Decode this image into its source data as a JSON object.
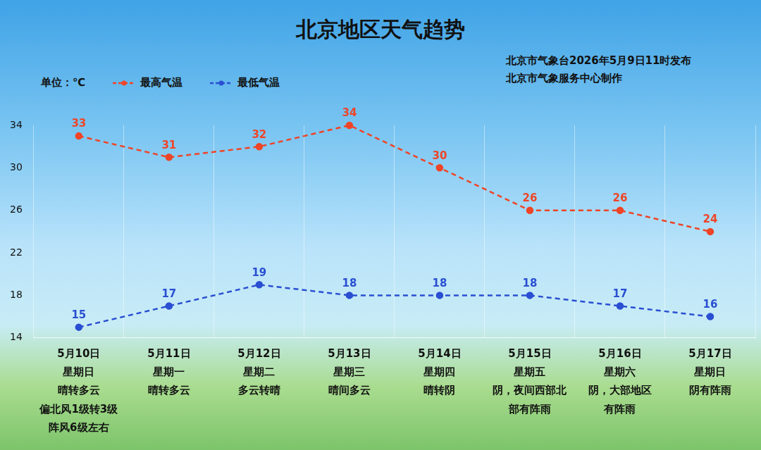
{
  "chart_data": {
    "type": "line",
    "title": "北京地区天气趋势",
    "subtitle": [
      "北京市气象台2026年5月9日11时发布",
      "北京市气象服务中心制作"
    ],
    "y_label": "单位：℃",
    "categories": [
      [
        "5月10日",
        "星期日",
        "晴转多云",
        "偏北风1级转3级",
        "阵风6级左右"
      ],
      [
        "5月11日",
        "星期一",
        "晴转多云"
      ],
      [
        "5月12日",
        "星期二",
        "多云转晴"
      ],
      [
        "5月13日",
        "星期三",
        "晴间多云"
      ],
      [
        "5月14日",
        "星期四",
        "晴转阴"
      ],
      [
        "5月15日",
        "星期五",
        "阴，夜间西部北",
        "部有阵雨"
      ],
      [
        "5月16日",
        "星期六",
        "阴，大部地区",
        "有阵雨"
      ],
      [
        "5月17日",
        "星期日",
        "阴有阵雨"
      ]
    ],
    "series": [
      {
        "name": "最高气温",
        "color": "#ef4427",
        "values": [
          33,
          31,
          32,
          34,
          30,
          26,
          26,
          24
        ],
        "line_style": "dashed",
        "marker": "circle"
      },
      {
        "name": "最低气温",
        "color": "#2a4fd2",
        "values": [
          15,
          17,
          19,
          18,
          18,
          18,
          17,
          16
        ],
        "line_style": "dashed",
        "marker": "circle"
      }
    ],
    "ylim": [
      14,
      34
    ],
    "yticks": [
      14,
      18,
      22,
      26,
      30,
      34
    ],
    "grid": true,
    "legend": "top-left",
    "data_labels": true
  }
}
